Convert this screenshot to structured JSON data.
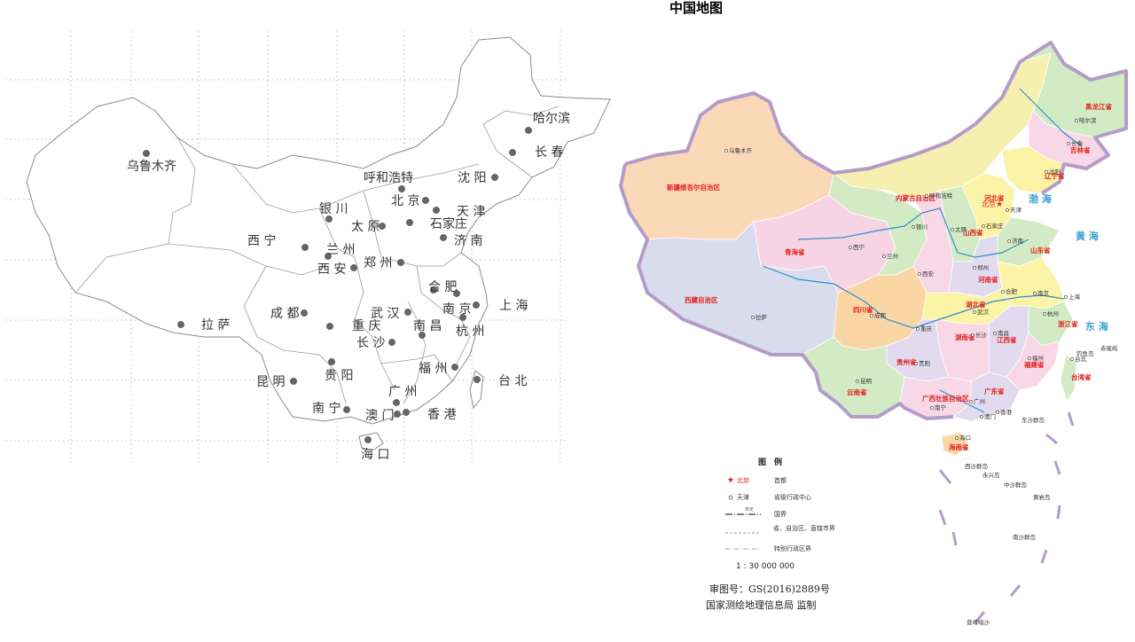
{
  "title": "中国地图",
  "left_map": {
    "cities": [
      {
        "name": "哈尔滨",
        "dot": [
          596,
          147
        ],
        "label": [
          601,
          138
        ]
      },
      {
        "name": "长春",
        "dot": [
          578,
          172
        ],
        "label": [
          603,
          176
        ]
      },
      {
        "name": "沈阳",
        "dot": [
          558,
          200
        ],
        "label": [
          516,
          205
        ]
      },
      {
        "name": "乌鲁木齐",
        "dot": [
          165,
          173
        ],
        "label": [
          143,
          192
        ]
      },
      {
        "name": "呼和浩特",
        "dot": [
          453,
          213
        ],
        "label": [
          410,
          205
        ]
      },
      {
        "name": "北京",
        "dot": [
          480,
          226
        ],
        "label": [
          441,
          231
        ]
      },
      {
        "name": "天津",
        "dot": [
          492,
          237
        ],
        "label": [
          515,
          243
        ]
      },
      {
        "name": "银川",
        "dot": [
          371,
          247
        ],
        "label": [
          360,
          240
        ]
      },
      {
        "name": "太原",
        "dot": [
          431,
          255
        ],
        "label": [
          396,
          260
        ]
      },
      {
        "name": "石家庄",
        "dot": [
          462,
          251
        ],
        "label": [
          485,
          257
        ]
      },
      {
        "name": "济南",
        "dot": [
          500,
          268
        ],
        "label": [
          512,
          276
        ]
      },
      {
        "name": "西宁",
        "dot": [
          344,
          279
        ],
        "label": [
          279,
          276
        ]
      },
      {
        "name": "兰州",
        "dot": [
          370,
          289
        ],
        "label": [
          368,
          286
        ]
      },
      {
        "name": "郑州",
        "dot": [
          452,
          296
        ],
        "label": [
          410,
          301
        ]
      },
      {
        "name": "西安",
        "dot": [
          399,
          302
        ],
        "label": [
          358,
          308
        ]
      },
      {
        "name": "合肥",
        "dot": [
          489,
          327
        ],
        "label": [
          483,
          328
        ]
      },
      {
        "name": "南京",
        "dot": [
          515,
          331
        ],
        "label": [
          499,
          353
        ]
      },
      {
        "name": "上海",
        "dot": [
          537,
          344
        ],
        "label": [
          563,
          349
        ]
      },
      {
        "name": "拉萨",
        "dot": [
          204,
          366
        ],
        "label": [
          227,
          371
        ]
      },
      {
        "name": "成都",
        "dot": [
          343,
          353
        ],
        "label": [
          305,
          358
        ]
      },
      {
        "name": "武汉",
        "dot": [
          460,
          352
        ],
        "label": [
          418,
          358
        ]
      },
      {
        "name": "重庆",
        "dot": [
          372,
          368
        ],
        "label": [
          397,
          372
        ]
      },
      {
        "name": "南昌",
        "dot": [
          476,
          378
        ],
        "label": [
          466,
          372
        ]
      },
      {
        "name": "杭州",
        "dot": [
          522,
          358
        ],
        "label": [
          514,
          378
        ]
      },
      {
        "name": "长沙",
        "dot": [
          442,
          386
        ],
        "label": [
          402,
          391
        ]
      },
      {
        "name": "贵阳",
        "dot": [
          374,
          408
        ],
        "label": [
          366,
          428
        ]
      },
      {
        "name": "福州",
        "dot": [
          513,
          414
        ],
        "label": [
          472,
          420
        ]
      },
      {
        "name": "台北",
        "dot": [
          538,
          428
        ],
        "label": [
          562,
          434
        ]
      },
      {
        "name": "昆明",
        "dot": [
          331,
          430
        ],
        "label": [
          289,
          435
        ]
      },
      {
        "name": "广州",
        "dot": [
          447,
          454
        ],
        "label": [
          438,
          446
        ]
      },
      {
        "name": "南宁",
        "dot": [
          391,
          462
        ],
        "label": [
          352,
          465
        ]
      },
      {
        "name": "澳门",
        "dot": [
          448,
          467
        ],
        "label": [
          412,
          473
        ]
      },
      {
        "name": "香港",
        "dot": [
          458,
          465
        ],
        "label": [
          482,
          472
        ]
      },
      {
        "name": "海口",
        "dot": [
          415,
          496
        ],
        "label": [
          407,
          517
        ]
      }
    ]
  },
  "right_map": {
    "provinces": [
      {
        "name": "新疆维吾尔自治区",
        "pos": [
          752,
          214
        ]
      },
      {
        "name": "西藏自治区",
        "pos": [
          772,
          341
        ]
      },
      {
        "name": "青海省",
        "pos": [
          885,
          287
        ]
      },
      {
        "name": "四川省",
        "pos": [
          962,
          352
        ]
      },
      {
        "name": "内蒙古自治区",
        "pos": [
          1010,
          226
        ]
      },
      {
        "name": "黑龙江省",
        "pos": [
          1224,
          123
        ]
      },
      {
        "name": "吉林省",
        "pos": [
          1207,
          172
        ]
      },
      {
        "name": "辽宁省",
        "pos": [
          1178,
          201
        ]
      },
      {
        "name": "河北省",
        "pos": [
          1110,
          226
        ]
      },
      {
        "name": "山西省",
        "pos": [
          1086,
          265
        ]
      },
      {
        "name": "山东省",
        "pos": [
          1162,
          285
        ]
      },
      {
        "name": "河南省",
        "pos": [
          1103,
          318
        ]
      },
      {
        "name": "湖北省",
        "pos": [
          1089,
          346
        ]
      },
      {
        "name": "湖南省",
        "pos": [
          1077,
          383
        ]
      },
      {
        "name": "贵州省",
        "pos": [
          1011,
          411
        ]
      },
      {
        "name": "云南省",
        "pos": [
          955,
          445
        ]
      },
      {
        "name": "广西壮族自治区",
        "pos": [
          1040,
          452
        ]
      },
      {
        "name": "广东省",
        "pos": [
          1110,
          444
        ]
      },
      {
        "name": "江西省",
        "pos": [
          1124,
          386
        ]
      },
      {
        "name": "福建省",
        "pos": [
          1155,
          414
        ]
      },
      {
        "name": "浙江省",
        "pos": [
          1193,
          368
        ]
      },
      {
        "name": "台湾省",
        "pos": [
          1208,
          428
        ]
      },
      {
        "name": "海南省",
        "pos": [
          1070,
          507
        ]
      }
    ],
    "cities": [
      {
        "name": "乌鲁木齐",
        "pos": [
          822,
          172
        ]
      },
      {
        "name": "拉萨",
        "pos": [
          852,
          360
        ]
      },
      {
        "name": "西宁",
        "pos": [
          962,
          281
        ]
      },
      {
        "name": "兰州",
        "pos": [
          1000,
          291
        ]
      },
      {
        "name": "银川",
        "pos": [
          1033,
          258
        ]
      },
      {
        "name": "呼和浩特",
        "pos": [
          1048,
          223
        ]
      },
      {
        "name": "北京",
        "pos": [
          1107,
          230
        ]
      },
      {
        "name": "天津",
        "pos": [
          1139,
          239
        ]
      },
      {
        "name": "太原",
        "pos": [
          1077,
          261
        ]
      },
      {
        "name": "石家庄",
        "pos": [
          1112,
          257
        ]
      },
      {
        "name": "济南",
        "pos": [
          1141,
          274
        ]
      },
      {
        "name": "郑州",
        "pos": [
          1102,
          304
        ]
      },
      {
        "name": "西安",
        "pos": [
          1040,
          311
        ]
      },
      {
        "name": "成都",
        "pos": [
          986,
          358
        ]
      },
      {
        "name": "重庆",
        "pos": [
          1038,
          373
        ]
      },
      {
        "name": "武汉",
        "pos": [
          1102,
          354
        ]
      },
      {
        "name": "合肥",
        "pos": [
          1134,
          331
        ]
      },
      {
        "name": "南京",
        "pos": [
          1170,
          333
        ]
      },
      {
        "name": "上海",
        "pos": [
          1205,
          337
        ]
      },
      {
        "name": "杭州",
        "pos": [
          1181,
          356
        ]
      },
      {
        "name": "长沙",
        "pos": [
          1100,
          380
        ]
      },
      {
        "name": "南昌",
        "pos": [
          1125,
          378
        ]
      },
      {
        "name": "福州",
        "pos": [
          1164,
          406
        ]
      },
      {
        "name": "贵阳",
        "pos": [
          1036,
          412
        ]
      },
      {
        "name": "昆明",
        "pos": [
          970,
          432
        ]
      },
      {
        "name": "南宁",
        "pos": [
          1054,
          462
        ]
      },
      {
        "name": "广州",
        "pos": [
          1098,
          455
        ]
      },
      {
        "name": "香港",
        "pos": [
          1128,
          467
        ]
      },
      {
        "name": "澳门",
        "pos": [
          1110,
          472
        ]
      },
      {
        "name": "海口",
        "pos": [
          1082,
          496
        ]
      },
      {
        "name": "沈阳",
        "pos": [
          1183,
          196
        ]
      },
      {
        "name": "长春",
        "pos": [
          1208,
          164
        ]
      },
      {
        "name": "哈尔滨",
        "pos": [
          1217,
          138
        ]
      },
      {
        "name": "台北",
        "pos": [
          1212,
          407
        ]
      }
    ],
    "seas": [
      {
        "name": "黄海",
        "pos": [
          1213,
          270
        ]
      },
      {
        "name": "东海",
        "pos": [
          1224,
          372
        ]
      },
      {
        "name": "渤海",
        "pos": [
          1160,
          228
        ]
      }
    ],
    "islands": [
      {
        "name": "钓鱼岛",
        "pos": [
          1214,
          401
        ]
      },
      {
        "name": "赤尾屿",
        "pos": [
          1241,
          395
        ]
      },
      {
        "name": "东沙群岛",
        "pos": [
          1152,
          476
        ]
      },
      {
        "name": "西沙群岛",
        "pos": [
          1088,
          528
        ]
      },
      {
        "name": "永兴岛",
        "pos": [
          1108,
          538
        ]
      },
      {
        "name": "中沙群岛",
        "pos": [
          1132,
          549
        ]
      },
      {
        "name": "黄岩岛",
        "pos": [
          1165,
          563
        ]
      },
      {
        "name": "南沙群岛",
        "pos": [
          1142,
          608
        ]
      },
      {
        "name": "曾母暗沙",
        "pos": [
          1090,
          704
        ]
      }
    ]
  },
  "legend": {
    "title": "图　例",
    "items": [
      {
        "symbol": "star",
        "sample": "北京",
        "label": "首都"
      },
      {
        "symbol": "circle",
        "sample": "天津",
        "label": "省级行政中心"
      },
      {
        "symbol": "border-national",
        "sample": "未定",
        "label": "国界"
      },
      {
        "symbol": "border-province",
        "sample": "",
        "label": "省、自治区、直辖市界"
      },
      {
        "symbol": "border-sar",
        "sample": "",
        "label": "特别行政区界"
      }
    ],
    "scale": "1 : 30 000 000",
    "approval": "审图号：GS(2016)2889号",
    "publisher": "国家测绘地理信息局 监制"
  },
  "colors": {
    "border": "#b39dc8",
    "xinjiang": "#fbd9b8",
    "tibet": "#d9dced",
    "qinghai": "#f7d4e4",
    "sichuan": "#fbd6a5",
    "inner_mongolia": "#f7efb0",
    "green": "#d3ebc4",
    "yellow": "#fbf3a6",
    "pink": "#f8d7e6",
    "lavender": "#e2dbef",
    "river": "#2f8fc9",
    "sea_text": "#3aa0d0",
    "province_text": "#e0201c"
  }
}
